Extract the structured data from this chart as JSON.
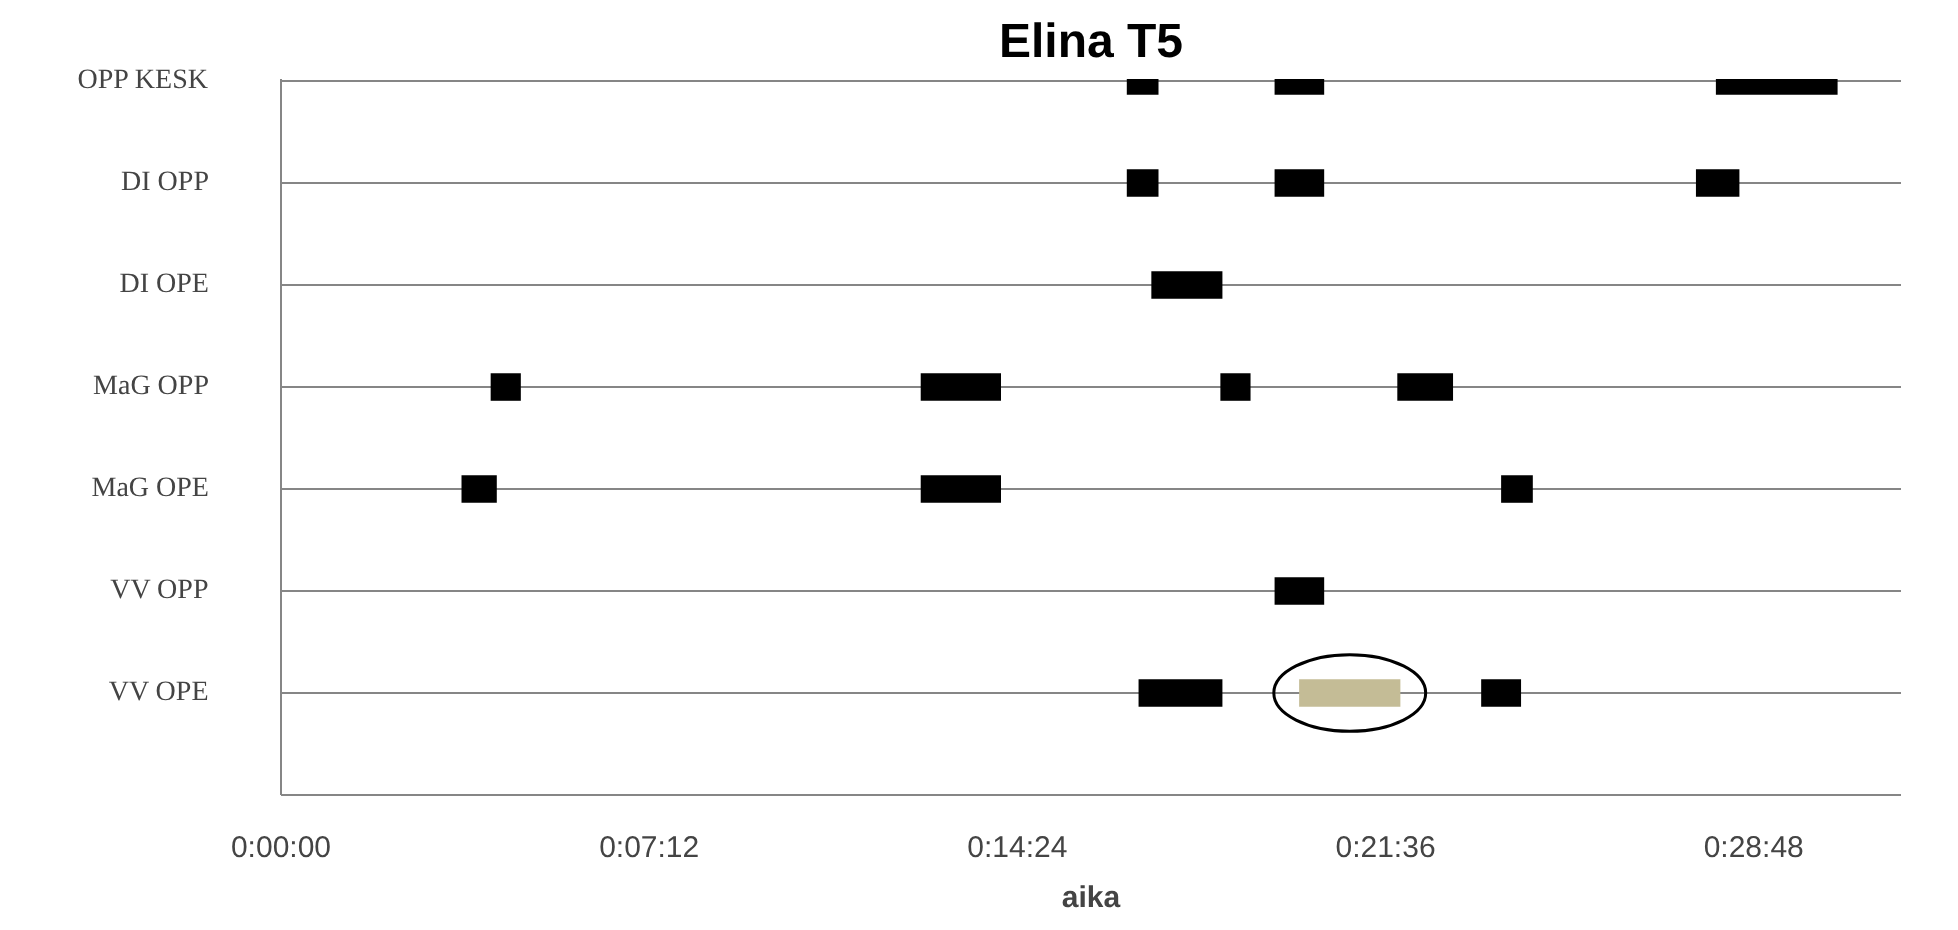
{
  "chart_data": {
    "type": "bar",
    "orientation": "horizontal",
    "title": "Elina T5",
    "xlabel": "aika",
    "categories": [
      "OPP KESK",
      "DI OPP",
      "DI OPE",
      "MaG OPP",
      "MaG OPE",
      "VV OPP",
      "VV OPE"
    ],
    "series": [
      {
        "color": "#000000",
        "base": [
          16.54,
          16.54,
          17.02,
          4.1,
          3.53,
          19.43,
          16.77
        ],
        "values": [
          0.62,
          0.62,
          1.39,
          0.59,
          0.69,
          0.97,
          1.64
        ]
      },
      {
        "color": "#000000",
        "colors": [
          "#000000",
          "#000000",
          "#000000",
          "#000000",
          "#000000",
          "#000000",
          "#c4bc96"
        ],
        "base": [
          19.43,
          19.43,
          null,
          12.51,
          12.51,
          null,
          19.91
        ],
        "values": [
          0.97,
          0.97,
          null,
          1.57,
          1.57,
          null,
          1.98
        ]
      },
      {
        "color": "#000000",
        "base": [
          28.06,
          27.67,
          null,
          18.37,
          23.86,
          null,
          23.47
        ],
        "values": [
          2.38,
          0.85,
          null,
          0.59,
          0.62,
          null,
          0.78
        ]
      },
      {
        "color": "#000000",
        "base": [
          null,
          null,
          null,
          21.83,
          null,
          null,
          null
        ],
        "values": [
          null,
          null,
          null,
          1.09,
          null,
          null,
          null
        ]
      }
    ],
    "xlim": [
      0,
      31.68
    ],
    "xticks": [
      {
        "value": 0,
        "label": "0:00:00"
      },
      {
        "value": 7.2,
        "label": "0:07:12"
      },
      {
        "value": 14.4,
        "label": "0:14:24"
      },
      {
        "value": 21.6,
        "label": "0:21:36"
      },
      {
        "value": 28.8,
        "label": "0:28:48"
      }
    ],
    "grid": "y"
  }
}
